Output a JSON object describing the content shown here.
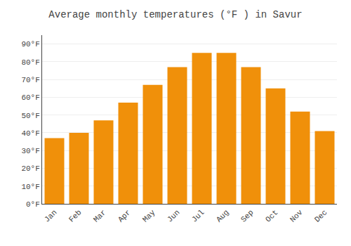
{
  "chart_data": {
    "type": "bar",
    "title": "Average monthly temperatures (°F ) in Savur",
    "categories": [
      "Jan",
      "Feb",
      "Mar",
      "Apr",
      "May",
      "Jun",
      "Jul",
      "Aug",
      "Sep",
      "Oct",
      "Nov",
      "Dec"
    ],
    "values": [
      37,
      40,
      47,
      57,
      67,
      77,
      85,
      85,
      77,
      65,
      52,
      41
    ],
    "color": "#F0900A",
    "ylim": [
      0,
      95
    ],
    "yticks": [
      {
        "value": 0,
        "label": "0°F"
      },
      {
        "value": 10,
        "label": "10°F"
      },
      {
        "value": 20,
        "label": "20°F"
      },
      {
        "value": 30,
        "label": "30°F"
      },
      {
        "value": 40,
        "label": "40°F"
      },
      {
        "value": 50,
        "label": "50°F"
      },
      {
        "value": 60,
        "label": "60°F"
      },
      {
        "value": 70,
        "label": "70°F"
      },
      {
        "value": 80,
        "label": "80°F"
      },
      {
        "value": 90,
        "label": "90°F"
      }
    ],
    "grid": true
  }
}
